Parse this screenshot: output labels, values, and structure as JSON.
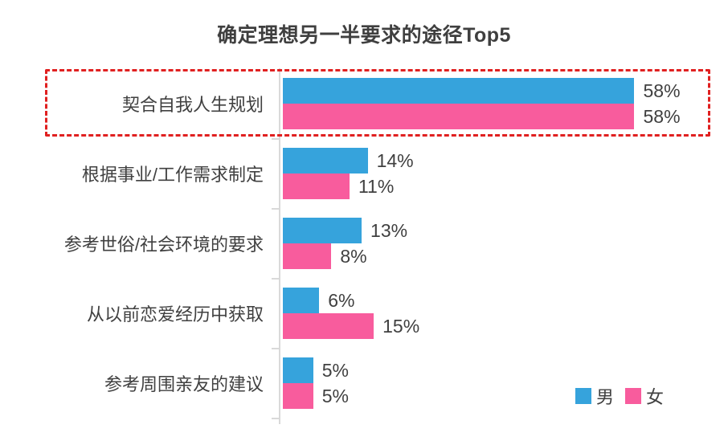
{
  "title": "确定理想另一半要求的途径Top5",
  "chart_data": {
    "type": "bar",
    "orientation": "horizontal",
    "title": "确定理想另一半要求的途径Top5",
    "categories": [
      "契合自我人生规划",
      "根据事业/工作需求制定",
      "参考世俗/社会环境的要求",
      "从以前恋爱经历中获取",
      "参考周围亲友的建议"
    ],
    "series": [
      {
        "name": "男",
        "color": "#36a3dc",
        "values": [
          58,
          14,
          13,
          6,
          5
        ]
      },
      {
        "name": "女",
        "color": "#f85c9d",
        "values": [
          58,
          11,
          8,
          15,
          5
        ]
      }
    ],
    "value_suffix": "%",
    "xlim": [
      0,
      70
    ],
    "grid": false,
    "legend_position": "bottom-right",
    "axis_color": "#d9d9d9",
    "label_color": "#404040",
    "highlight": {
      "category_index": 0,
      "style": "red-dashed-box",
      "color": "#e02020"
    }
  }
}
